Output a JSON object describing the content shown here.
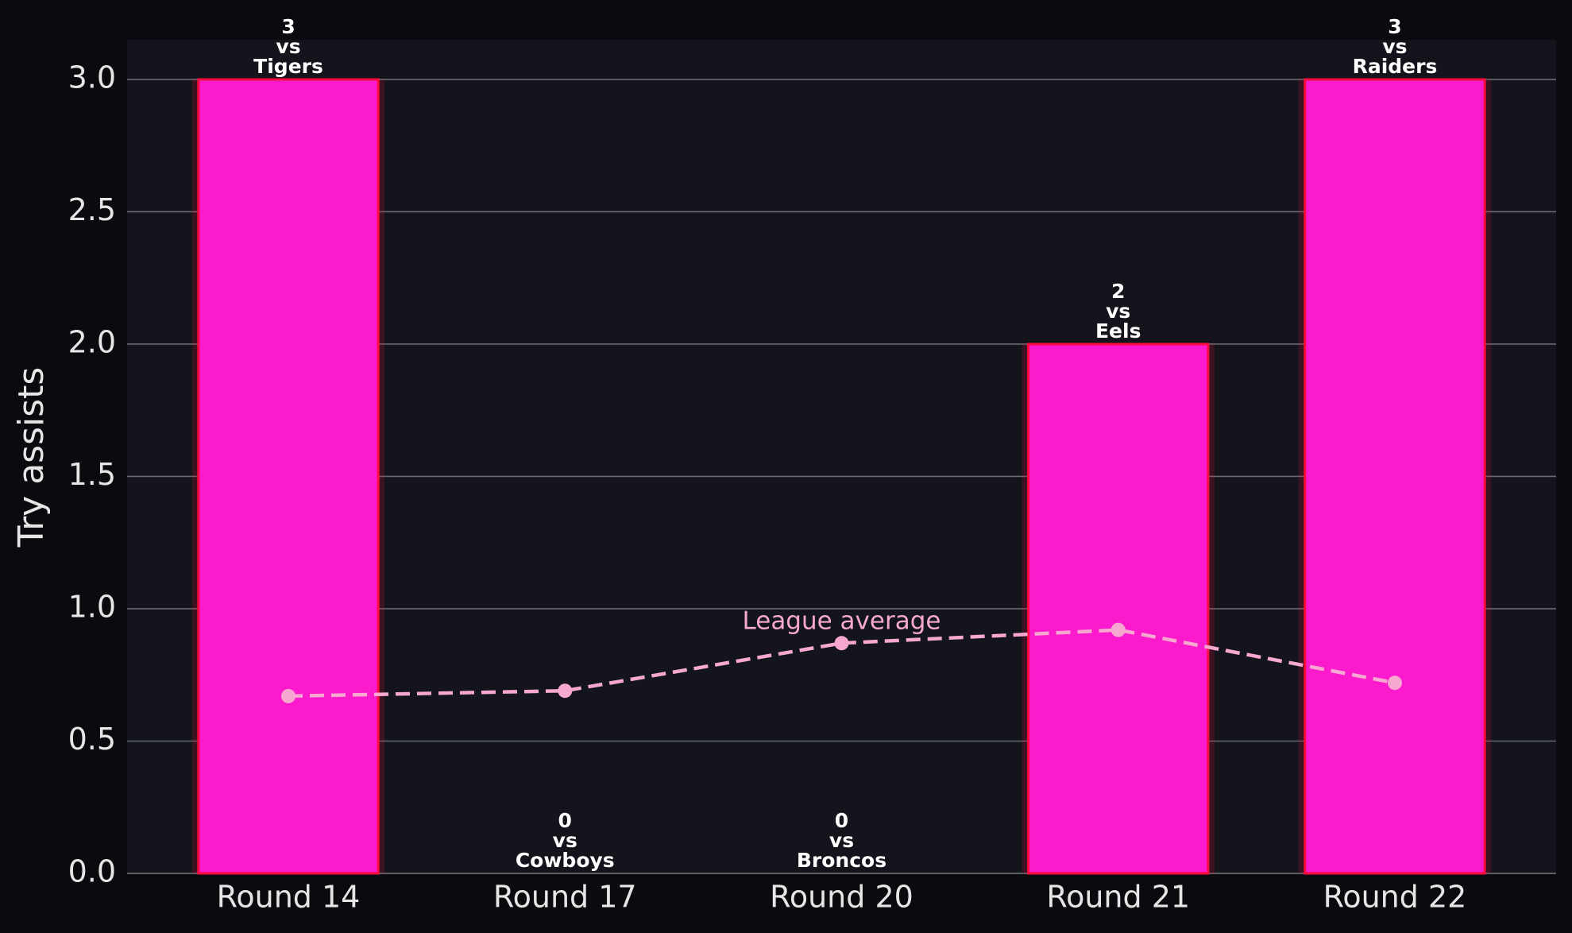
{
  "chart_data": {
    "type": "bar",
    "y_label": "Try assists",
    "categories": [
      "Round 14",
      "Round 17",
      "Round 20",
      "Round 21",
      "Round 22"
    ],
    "series": [
      {
        "type": "bar",
        "color": "#fb1bcc",
        "edge_color": "#ff0a3c",
        "values": [
          3,
          0,
          0,
          2,
          3
        ],
        "connector": "vs",
        "opponents": [
          "Tigers",
          "Cowboys",
          "Broncos",
          "Eels",
          "Raiders"
        ]
      },
      {
        "type": "line",
        "name": "League average",
        "color": "#f7a8d0",
        "values": [
          0.67,
          0.69,
          0.87,
          0.92,
          0.72
        ]
      }
    ],
    "ylim": [
      0,
      3.15
    ],
    "yticks": [
      {
        "value": 0,
        "label": "0.0"
      },
      0.5,
      {
        "value": 1,
        "label": "1.0"
      },
      1.5,
      {
        "value": 2,
        "label": "2.0"
      },
      2.5,
      {
        "value": 3,
        "label": "3.0"
      }
    ],
    "grid": true
  }
}
